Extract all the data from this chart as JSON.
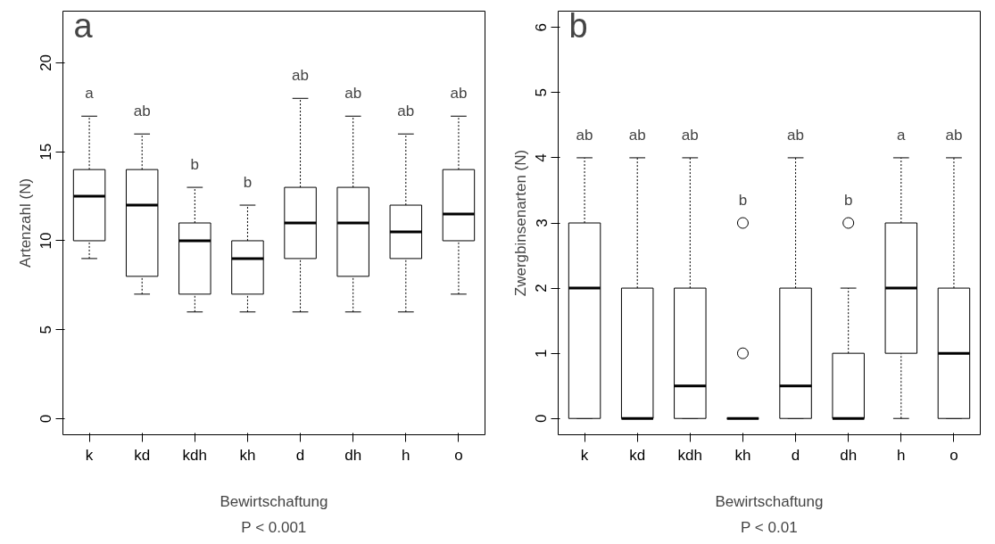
{
  "chart_data": [
    {
      "type": "box",
      "xlabel": "Bewirtschaftung",
      "ylabel": "Artenzahl (N)",
      "categories": [
        "k",
        "kd",
        "kdh",
        "kh",
        "d",
        "dh",
        "h",
        "o"
      ],
      "ylim": [
        -0.9,
        22.9
      ],
      "yticks": [
        0,
        5,
        10,
        15,
        20
      ],
      "boxes": [
        {
          "low": 9,
          "q1": 10,
          "median": 12.5,
          "q3": 14,
          "high": 17
        },
        {
          "low": 7,
          "q1": 8,
          "median": 12,
          "q3": 14,
          "high": 16
        },
        {
          "low": 6,
          "q1": 7,
          "median": 10,
          "q3": 11,
          "high": 13
        },
        {
          "low": 6,
          "q1": 7,
          "median": 9,
          "q3": 10,
          "high": 12
        },
        {
          "low": 6,
          "q1": 9,
          "median": 11,
          "q3": 13,
          "high": 18
        },
        {
          "low": 6,
          "q1": 8,
          "median": 11,
          "q3": 13,
          "high": 17
        },
        {
          "low": 6,
          "q1": 9,
          "median": 10.5,
          "q3": 12,
          "high": 16
        },
        {
          "low": 7,
          "q1": 10,
          "median": 11.5,
          "q3": 14,
          "high": 17
        }
      ],
      "annotations": [
        "a",
        "P < 0.001",
        "a",
        "ab",
        "b",
        "b",
        "ab",
        "ab",
        "ab",
        "ab"
      ]
    },
    {
      "type": "box",
      "xlabel": "Bewirtschaftung",
      "ylabel": "Zwergbinsenarten (N)",
      "categories": [
        "k",
        "kd",
        "kdh",
        "kh",
        "d",
        "dh",
        "h",
        "o"
      ],
      "ylim": [
        -0.25,
        6.25
      ],
      "yticks": [
        0,
        1,
        2,
        3,
        4,
        5,
        6
      ],
      "boxes": [
        {
          "low": 0,
          "q1": 0,
          "median": 2,
          "q3": 3,
          "high": 4
        },
        {
          "low": 0,
          "q1": 0,
          "median": 0,
          "q3": 2,
          "high": 4
        },
        {
          "low": 0,
          "q1": 0,
          "median": 0.5,
          "q3": 2,
          "high": 4
        },
        {
          "low": 0,
          "q1": 0,
          "median": 0,
          "q3": 0,
          "high": 0,
          "outliers": [
            1,
            3
          ]
        },
        {
          "low": 0,
          "q1": 0,
          "median": 0.5,
          "q3": 2,
          "high": 4
        },
        {
          "low": 0,
          "q1": 0,
          "median": 0,
          "q3": 1,
          "high": 2,
          "outliers": [
            3
          ]
        },
        {
          "low": 0,
          "q1": 1,
          "median": 2,
          "q3": 3,
          "high": 4
        },
        {
          "low": 0,
          "q1": 0,
          "median": 1,
          "q3": 2,
          "high": 4
        }
      ],
      "annotations": [
        "b",
        "P < 0.01",
        "ab",
        "ab",
        "ab",
        "b",
        "ab",
        "b",
        "a",
        "ab"
      ]
    }
  ]
}
